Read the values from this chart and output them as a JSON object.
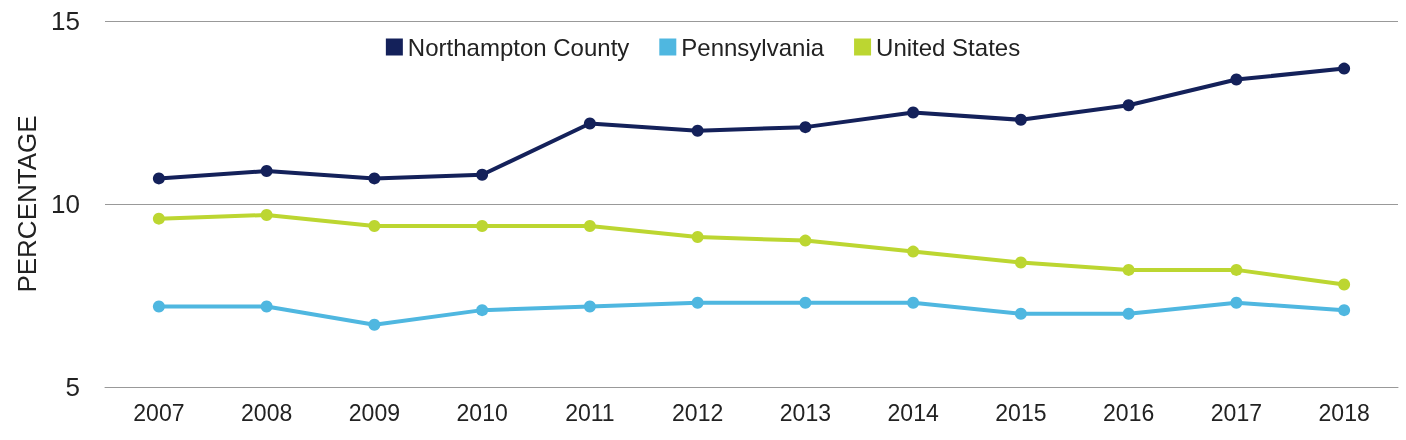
{
  "chart_data": {
    "type": "line",
    "ylabel": "PERCENTAGE",
    "categories": [
      "2007",
      "2008",
      "2009",
      "2010",
      "2011",
      "2012",
      "2013",
      "2014",
      "2015",
      "2016",
      "2017",
      "2018"
    ],
    "series": [
      {
        "name": "Northampton County",
        "color": "#14215a",
        "values": [
          10.7,
          10.9,
          10.7,
          10.8,
          12.2,
          12.0,
          12.1,
          12.5,
          12.3,
          12.7,
          13.4,
          13.7
        ]
      },
      {
        "name": "Pennsylvania",
        "color": "#4fb7e0",
        "values": [
          7.2,
          7.2,
          6.7,
          7.1,
          7.2,
          7.3,
          7.3,
          7.3,
          7.0,
          7.0,
          7.3,
          7.1
        ]
      },
      {
        "name": "United States",
        "color": "#bcd631",
        "values": [
          9.6,
          9.7,
          9.4,
          9.4,
          9.4,
          9.1,
          9.0,
          8.7,
          8.4,
          8.2,
          8.2,
          7.8
        ]
      }
    ],
    "ylim": [
      5,
      15
    ],
    "yticks": [
      5,
      10,
      15
    ],
    "grid": "y",
    "legend": "top",
    "marker": "circle",
    "line_style": "solid"
  }
}
